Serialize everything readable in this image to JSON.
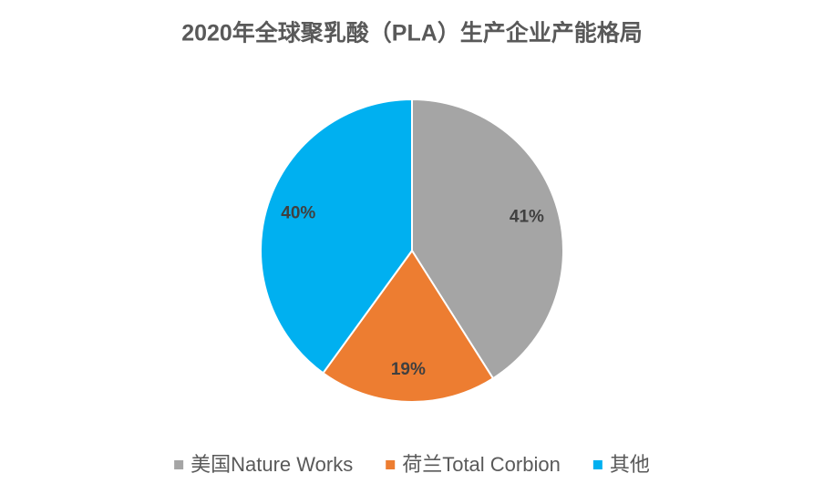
{
  "chart_data": {
    "type": "pie",
    "title": "2020年全球聚乳酸（PLA）生产企业产能格局",
    "categories": [
      "美国Nature Works",
      "荷兰Total Corbion",
      "其他"
    ],
    "values": [
      41,
      19,
      40
    ],
    "value_labels": [
      "41%",
      "19%",
      "40%"
    ],
    "colors": [
      "#a5a5a5",
      "#ed7d31",
      "#00b0f0"
    ],
    "legend": "bottom"
  }
}
